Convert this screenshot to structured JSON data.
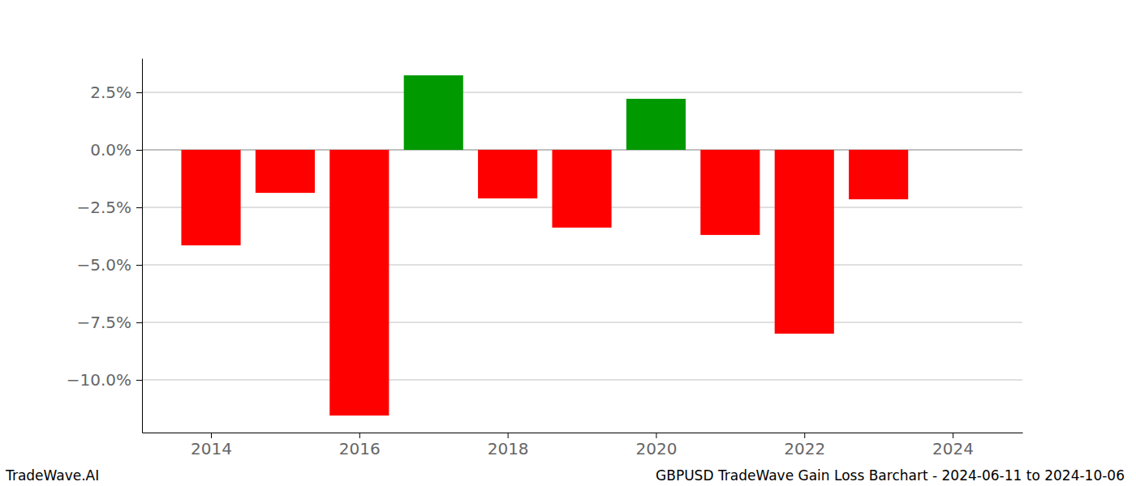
{
  "chart_data": {
    "type": "bar",
    "title": "GBPUSD TradeWave Gain Loss Barchart - 2024-06-11 to 2024-10-06",
    "annotations": [
      "TradeWave.AI"
    ],
    "x": [
      2014,
      2015,
      2016,
      2017,
      2018,
      2019,
      2020,
      2021,
      2022,
      2023
    ],
    "values": [
      -4.15,
      -1.87,
      -11.55,
      3.24,
      -2.11,
      -3.38,
      2.22,
      -3.7,
      -7.99,
      -2.15
    ],
    "colors": [
      "#ff0000",
      "#ff0000",
      "#ff0000",
      "#009900",
      "#ff0000",
      "#ff0000",
      "#009900",
      "#ff0000",
      "#ff0000",
      "#ff0000"
    ],
    "xlim": [
      2013.07,
      2024.94
    ],
    "xticks": [
      2014,
      2016,
      2018,
      2020,
      2022,
      2024
    ],
    "ylim": [
      -12.29,
      3.98
    ],
    "yticks": [
      {
        "value": 2.5,
        "label": "2.5%"
      },
      {
        "value": 0,
        "label": "0.0%"
      },
      {
        "value": -2.5,
        "label": "−2.5%"
      },
      {
        "value": -5,
        "label": "−5.0%"
      },
      {
        "value": -7.5,
        "label": "−7.5%"
      },
      {
        "value": -10,
        "label": "−10.0%"
      }
    ],
    "grid": true
  }
}
